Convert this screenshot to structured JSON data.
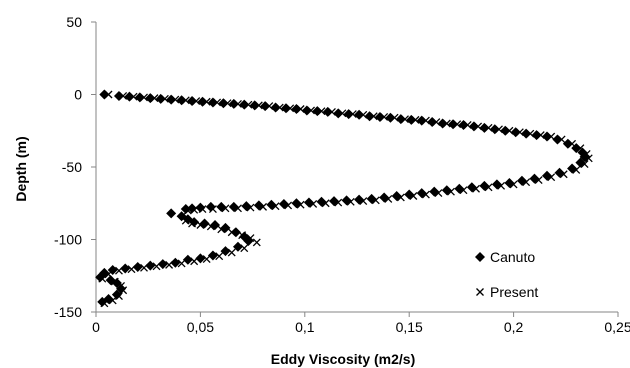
{
  "chart_data": {
    "type": "scatter",
    "title": "",
    "xlabel": "Eddy Viscosity (m2/s)",
    "ylabel": "Depth (m)",
    "xlim": [
      0,
      0.25
    ],
    "ylim": [
      -150,
      50
    ],
    "x_ticks": [
      0,
      0.05,
      0.1,
      0.15,
      0.2,
      0.25
    ],
    "x_tick_labels": [
      "0",
      "0,05",
      "0,1",
      "0,15",
      "0,2",
      "0,25"
    ],
    "y_ticks": [
      50,
      0,
      -50,
      -100,
      -150
    ],
    "y_tick_labels": [
      "50",
      "0",
      "-50",
      "-100",
      "-150"
    ],
    "grid": false,
    "legend_position": "lower-right",
    "series": [
      {
        "name": "Canuto",
        "marker": "diamond",
        "color": "#000000",
        "points": [
          [
            0.004,
            0
          ],
          [
            0.011,
            -1
          ],
          [
            0.016,
            -1.5
          ],
          [
            0.021,
            -2
          ],
          [
            0.026,
            -2.5
          ],
          [
            0.031,
            -3
          ],
          [
            0.036,
            -3.5
          ],
          [
            0.041,
            -4
          ],
          [
            0.046,
            -4.5
          ],
          [
            0.051,
            -5
          ],
          [
            0.056,
            -5.5
          ],
          [
            0.061,
            -6
          ],
          [
            0.066,
            -6.5
          ],
          [
            0.071,
            -7
          ],
          [
            0.076,
            -7.5
          ],
          [
            0.081,
            -8
          ],
          [
            0.086,
            -9
          ],
          [
            0.091,
            -9.5
          ],
          [
            0.096,
            -10
          ],
          [
            0.101,
            -11
          ],
          [
            0.106,
            -11.5
          ],
          [
            0.111,
            -12
          ],
          [
            0.116,
            -13
          ],
          [
            0.121,
            -13.5
          ],
          [
            0.126,
            -14
          ],
          [
            0.131,
            -15
          ],
          [
            0.136,
            -15.5
          ],
          [
            0.141,
            -16
          ],
          [
            0.146,
            -17
          ],
          [
            0.151,
            -17.5
          ],
          [
            0.156,
            -18
          ],
          [
            0.161,
            -19
          ],
          [
            0.166,
            -20
          ],
          [
            0.171,
            -20.5
          ],
          [
            0.176,
            -21
          ],
          [
            0.181,
            -22
          ],
          [
            0.186,
            -23
          ],
          [
            0.191,
            -24
          ],
          [
            0.196,
            -25
          ],
          [
            0.201,
            -26
          ],
          [
            0.206,
            -27
          ],
          [
            0.211,
            -28
          ],
          [
            0.216,
            -29
          ],
          [
            0.221,
            -31
          ],
          [
            0.226,
            -34
          ],
          [
            0.23,
            -37
          ],
          [
            0.233,
            -40
          ],
          [
            0.234,
            -43
          ],
          [
            0.232,
            -47
          ],
          [
            0.228,
            -51
          ],
          [
            0.222,
            -54
          ],
          [
            0.216,
            -56
          ],
          [
            0.21,
            -58
          ],
          [
            0.204,
            -59.5
          ],
          [
            0.198,
            -61
          ],
          [
            0.192,
            -62
          ],
          [
            0.186,
            -63
          ],
          [
            0.18,
            -64
          ],
          [
            0.174,
            -65
          ],
          [
            0.168,
            -66
          ],
          [
            0.162,
            -67
          ],
          [
            0.156,
            -68
          ],
          [
            0.15,
            -69
          ],
          [
            0.144,
            -70
          ],
          [
            0.138,
            -71
          ],
          [
            0.132,
            -72
          ],
          [
            0.126,
            -72.5
          ],
          [
            0.12,
            -73
          ],
          [
            0.114,
            -73.5
          ],
          [
            0.108,
            -74
          ],
          [
            0.102,
            -74.5
          ],
          [
            0.096,
            -75
          ],
          [
            0.09,
            -75.5
          ],
          [
            0.084,
            -76
          ],
          [
            0.078,
            -76.5
          ],
          [
            0.072,
            -77
          ],
          [
            0.066,
            -77.5
          ],
          [
            0.06,
            -77.5
          ],
          [
            0.055,
            -77.5
          ],
          [
            0.05,
            -78
          ],
          [
            0.046,
            -78.5
          ],
          [
            0.043,
            -79
          ],
          [
            0.036,
            -82
          ],
          [
            0.041,
            -84
          ],
          [
            0.044,
            -86
          ],
          [
            0.047,
            -88
          ],
          [
            0.052,
            -89
          ],
          [
            0.057,
            -90
          ],
          [
            0.062,
            -92
          ],
          [
            0.067,
            -95
          ],
          [
            0.071,
            -98
          ],
          [
            0.073,
            -101
          ],
          [
            0.068,
            -105
          ],
          [
            0.062,
            -108
          ],
          [
            0.056,
            -111
          ],
          [
            0.05,
            -113
          ],
          [
            0.044,
            -114
          ],
          [
            0.038,
            -116
          ],
          [
            0.032,
            -117
          ],
          [
            0.026,
            -118
          ],
          [
            0.02,
            -119
          ],
          [
            0.014,
            -120
          ],
          [
            0.008,
            -121
          ],
          [
            0.004,
            -123
          ],
          [
            0.002,
            -126
          ],
          [
            0.007,
            -128
          ],
          [
            0.01,
            -130
          ],
          [
            0.012,
            -134
          ],
          [
            0.01,
            -138
          ],
          [
            0.006,
            -141
          ],
          [
            0.003,
            -143
          ]
        ]
      },
      {
        "name": "Present",
        "marker": "x",
        "color": "#000000",
        "points": [
          [
            0.006,
            0
          ],
          [
            0.013,
            -1
          ],
          [
            0.018,
            -1.5
          ],
          [
            0.023,
            -2
          ],
          [
            0.028,
            -2.5
          ],
          [
            0.033,
            -3
          ],
          [
            0.038,
            -3.5
          ],
          [
            0.043,
            -4
          ],
          [
            0.048,
            -4.5
          ],
          [
            0.053,
            -5
          ],
          [
            0.058,
            -5.5
          ],
          [
            0.063,
            -6
          ],
          [
            0.068,
            -6.5
          ],
          [
            0.073,
            -7
          ],
          [
            0.078,
            -7.5
          ],
          [
            0.083,
            -8
          ],
          [
            0.088,
            -9
          ],
          [
            0.093,
            -9.5
          ],
          [
            0.098,
            -10
          ],
          [
            0.103,
            -11
          ],
          [
            0.108,
            -11.5
          ],
          [
            0.113,
            -12
          ],
          [
            0.118,
            -13
          ],
          [
            0.123,
            -13.5
          ],
          [
            0.128,
            -14
          ],
          [
            0.133,
            -15
          ],
          [
            0.138,
            -15.5
          ],
          [
            0.143,
            -16
          ],
          [
            0.148,
            -17
          ],
          [
            0.153,
            -17.5
          ],
          [
            0.158,
            -18
          ],
          [
            0.163,
            -19
          ],
          [
            0.168,
            -20
          ],
          [
            0.173,
            -20.5
          ],
          [
            0.178,
            -21
          ],
          [
            0.183,
            -22
          ],
          [
            0.188,
            -23
          ],
          [
            0.193,
            -24
          ],
          [
            0.198,
            -25
          ],
          [
            0.203,
            -26
          ],
          [
            0.208,
            -27
          ],
          [
            0.213,
            -28
          ],
          [
            0.218,
            -29
          ],
          [
            0.223,
            -31
          ],
          [
            0.228,
            -34
          ],
          [
            0.232,
            -37
          ],
          [
            0.235,
            -41
          ],
          [
            0.236,
            -44
          ],
          [
            0.234,
            -48
          ],
          [
            0.23,
            -52
          ],
          [
            0.224,
            -55
          ],
          [
            0.218,
            -57
          ],
          [
            0.212,
            -59
          ],
          [
            0.206,
            -60.5
          ],
          [
            0.2,
            -62
          ],
          [
            0.194,
            -63
          ],
          [
            0.188,
            -64
          ],
          [
            0.182,
            -65
          ],
          [
            0.176,
            -66
          ],
          [
            0.17,
            -67
          ],
          [
            0.164,
            -68
          ],
          [
            0.158,
            -69
          ],
          [
            0.152,
            -70
          ],
          [
            0.146,
            -71
          ],
          [
            0.14,
            -72
          ],
          [
            0.134,
            -73
          ],
          [
            0.128,
            -73.5
          ],
          [
            0.122,
            -74
          ],
          [
            0.116,
            -74.5
          ],
          [
            0.11,
            -75
          ],
          [
            0.104,
            -75.5
          ],
          [
            0.098,
            -76
          ],
          [
            0.092,
            -76.5
          ],
          [
            0.086,
            -77
          ],
          [
            0.08,
            -77.5
          ],
          [
            0.074,
            -78
          ],
          [
            0.068,
            -78.5
          ],
          [
            0.062,
            -78.5
          ],
          [
            0.056,
            -79
          ],
          [
            0.051,
            -79
          ],
          [
            0.047,
            -79.5
          ],
          [
            0.044,
            -80
          ],
          [
            0.043,
            -87
          ],
          [
            0.046,
            -89
          ],
          [
            0.05,
            -90
          ],
          [
            0.055,
            -91
          ],
          [
            0.06,
            -93
          ],
          [
            0.065,
            -95
          ],
          [
            0.07,
            -97
          ],
          [
            0.074,
            -99
          ],
          [
            0.077,
            -102
          ],
          [
            0.071,
            -106
          ],
          [
            0.065,
            -109
          ],
          [
            0.059,
            -111.5
          ],
          [
            0.053,
            -113.5
          ],
          [
            0.047,
            -115
          ],
          [
            0.041,
            -116.5
          ],
          [
            0.035,
            -117.5
          ],
          [
            0.029,
            -118.5
          ],
          [
            0.023,
            -119.5
          ],
          [
            0.017,
            -120.5
          ],
          [
            0.011,
            -121.5
          ],
          [
            0.006,
            -124
          ],
          [
            0.003,
            -127
          ],
          [
            0.009,
            -129
          ],
          [
            0.012,
            -132
          ],
          [
            0.013,
            -135
          ],
          [
            0.011,
            -139
          ],
          [
            0.008,
            -142
          ],
          [
            0.004,
            -144
          ]
        ]
      }
    ]
  }
}
